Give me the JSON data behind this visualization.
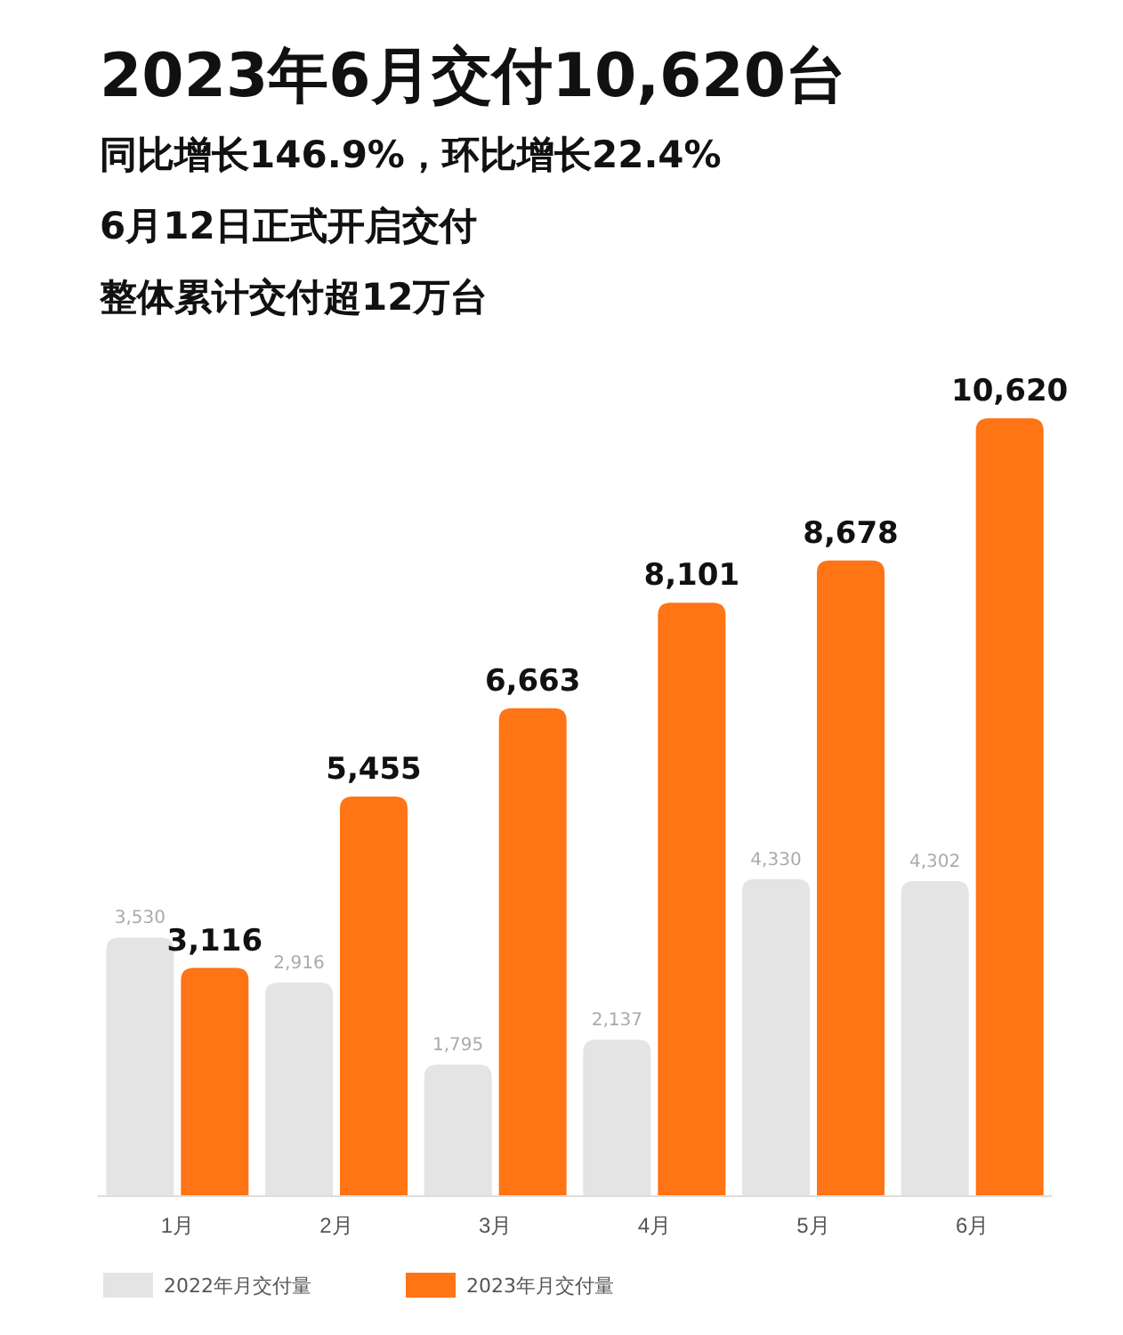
{
  "chart_data": {
    "type": "bar",
    "title": "2023年6月交付10,620台",
    "subtitle": "同比增长146.9%，环比增长22.4%",
    "annotations": [
      "6月12日正式开启交付",
      "整体累计交付超12万台"
    ],
    "categories": [
      "1月",
      "2月",
      "3月",
      "4月",
      "5月",
      "6月"
    ],
    "series": [
      {
        "name": "2022年月交付量",
        "color": "#e4e4e4",
        "values": [
          3530,
          2916,
          1795,
          2137,
          4330,
          4302
        ],
        "value_labels": [
          "3,530",
          "2,916",
          "1,795",
          "2,137",
          "4,330",
          "4,302"
        ]
      },
      {
        "name": "2023年月交付量",
        "color": "#ff7415",
        "values": [
          3116,
          5455,
          6663,
          8101,
          8678,
          10620
        ],
        "value_labels": [
          "3,116",
          "5,455",
          "6,663",
          "8,101",
          "8,678",
          "10,620"
        ]
      }
    ],
    "legend": "bottom left",
    "grid": false
  }
}
